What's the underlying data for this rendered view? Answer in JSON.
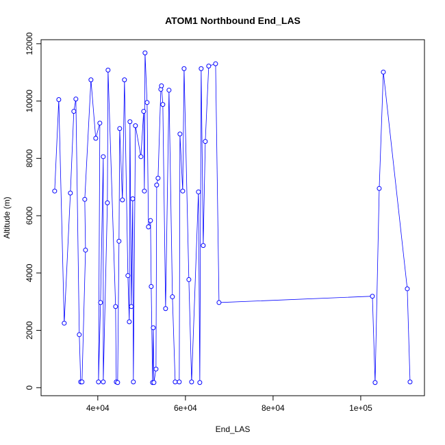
{
  "chart_data": {
    "type": "scatter",
    "title": "ATOM1 Northbound End_LAS",
    "xlabel": "End_LAS",
    "ylabel": "Altitude (m)",
    "color": "#0000ff",
    "x": [
      30160,
      31100,
      32340,
      33750,
      34530,
      35000,
      35780,
      36100,
      36400,
      37200,
      37030,
      38440,
      39530,
      40470,
      40160,
      40630,
      41250,
      41250,
      42190,
      42340,
      44060,
      44220,
      44530,
      44840,
      45000,
      45620,
      46090,
      46870,
      47190,
      47340,
      47660,
      47970,
      48120,
      48590,
      49840,
      50470,
      50630,
      50780,
      51250,
      51560,
      52030,
      52190,
      52500,
      52660,
      52810,
      53280,
      53440,
      53750,
      54380,
      54530,
      54840,
      55470,
      56250,
      57030,
      57660,
      58590,
      58750,
      59380,
      59690,
      60780,
      61410,
      62970,
      63280,
      63590,
      64060,
      64530,
      65310,
      66880,
      67660,
      102660,
      103280,
      104220,
      105160,
      110620,
      111250
    ],
    "y": [
      6860,
      10050,
      2250,
      6790,
      9640,
      10070,
      1850,
      200,
      200,
      4800,
      6570,
      10740,
      8700,
      9230,
      200,
      2970,
      8060,
      200,
      6450,
      11080,
      2830,
      200,
      180,
      5110,
      9040,
      6550,
      10740,
      3910,
      2300,
      9280,
      2830,
      6590,
      200,
      9140,
      8060,
      9640,
      6860,
      11680,
      9950,
      5610,
      5830,
      3530,
      180,
      2090,
      180,
      650,
      7070,
      7310,
      10410,
      10530,
      9880,
      2760,
      10380,
      3170,
      200,
      200,
      8850,
      6860,
      11130,
      3770,
      200,
      6830,
      180,
      11130,
      4960,
      8590,
      11220,
      11300,
      2970,
      3190,
      180,
      6950,
      11010,
      3450,
      200
    ],
    "xlim": [
      27060,
      114540
    ],
    "ylim": [
      -280,
      12140
    ],
    "xticks": [
      {
        "value": 40000,
        "label": "4e+04"
      },
      {
        "value": 60000,
        "label": "6e+04"
      },
      {
        "value": 80000,
        "label": "8e+04"
      },
      {
        "value": 100000,
        "label": "1e+05"
      }
    ],
    "yticks": [
      0,
      2000,
      4000,
      6000,
      8000,
      10000,
      12000
    ]
  }
}
